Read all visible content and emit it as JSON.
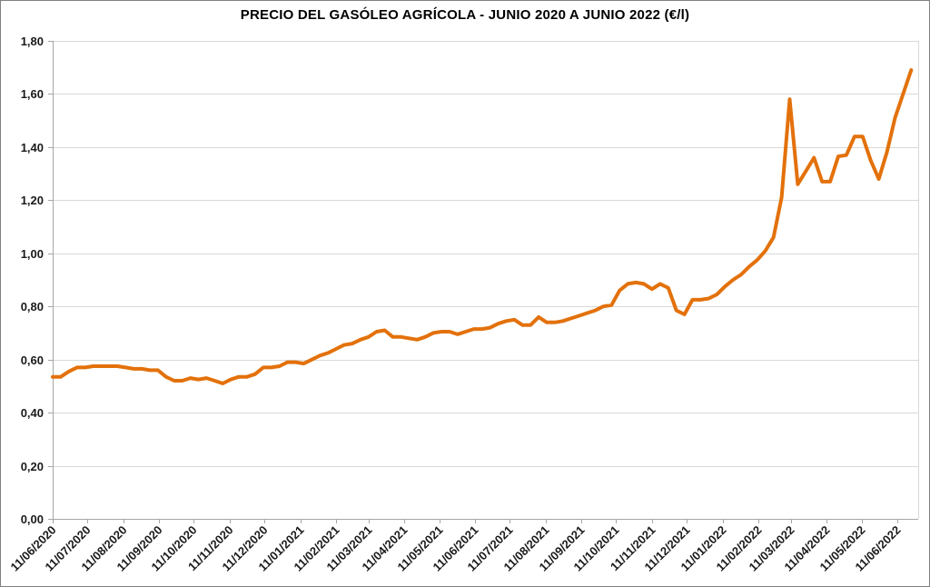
{
  "window": {
    "background": "#FFFFFF",
    "border_color": "#808080"
  },
  "chart_data": {
    "type": "line",
    "title": "PRECIO DEL GASÓLEO AGRÍCOLA - JUNIO 2020 A JUNIO 2022 (€/l)",
    "xlabel": "",
    "ylabel": "",
    "unit": "€/l",
    "ylim": [
      0,
      1.8
    ],
    "y_tick_step": 0.2,
    "y_tick_labels": [
      "0,00",
      "0,20",
      "0,40",
      "0,60",
      "0,80",
      "1,00",
      "1,20",
      "1,40",
      "1,60",
      "1,80"
    ],
    "x_tick_labels": [
      "11/06/2020",
      "11/07/2020",
      "11/08/2020",
      "11/09/2020",
      "11/10/2020",
      "11/11/2020",
      "11/12/2020",
      "11/01/2021",
      "11/02/2021",
      "11/03/2021",
      "11/04/2021",
      "11/05/2021",
      "11/06/2021",
      "11/07/2021",
      "11/08/2021",
      "11/09/2021",
      "11/10/2021",
      "11/11/2021",
      "11/12/2021",
      "11/01/2022",
      "11/02/2022",
      "11/03/2022",
      "11/04/2022",
      "11/05/2022",
      "11/06/2022"
    ],
    "grid": "horizontal",
    "legend": "none",
    "series": [
      {
        "name": "Precio gasóleo agrícola (€/l)",
        "start_date": "11/06/2020",
        "frequency_days": 7,
        "values": [
          0.535,
          0.535,
          0.555,
          0.57,
          0.57,
          0.575,
          0.575,
          0.575,
          0.575,
          0.57,
          0.565,
          0.565,
          0.56,
          0.56,
          0.535,
          0.52,
          0.52,
          0.53,
          0.525,
          0.53,
          0.52,
          0.51,
          0.525,
          0.535,
          0.535,
          0.545,
          0.57,
          0.57,
          0.575,
          0.59,
          0.59,
          0.585,
          0.6,
          0.615,
          0.625,
          0.64,
          0.655,
          0.66,
          0.675,
          0.685,
          0.705,
          0.71,
          0.685,
          0.685,
          0.68,
          0.675,
          0.685,
          0.7,
          0.705,
          0.705,
          0.695,
          0.705,
          0.715,
          0.715,
          0.72,
          0.735,
          0.745,
          0.75,
          0.73,
          0.73,
          0.76,
          0.74,
          0.74,
          0.745,
          0.755,
          0.765,
          0.775,
          0.785,
          0.8,
          0.805,
          0.86,
          0.885,
          0.89,
          0.885,
          0.865,
          0.885,
          0.87,
          0.785,
          0.77,
          0.825,
          0.825,
          0.83,
          0.845,
          0.875,
          0.9,
          0.92,
          0.95,
          0.975,
          1.01,
          1.06,
          1.21,
          1.58,
          1.26,
          1.31,
          1.36,
          1.27,
          1.27,
          1.365,
          1.37,
          1.44,
          1.44,
          1.35,
          1.28,
          1.38,
          1.51,
          1.6,
          1.69
        ]
      }
    ],
    "colors": {
      "line": "#E3710B",
      "grid": "#D9D9D9",
      "axis": "#A6A6A6",
      "text": "#1A1A1A"
    }
  }
}
